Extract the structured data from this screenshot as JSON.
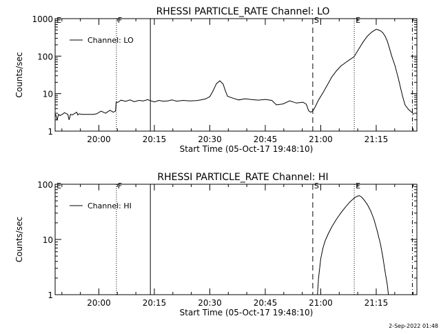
{
  "footer": {
    "timestamp": "2-Sep-2022 01:48"
  },
  "chart_data": [
    {
      "type": "line",
      "title": "RHESSI PARTICLE_RATE Channel: LO",
      "xlabel": "Start Time (05-Oct-17 19:48:10)",
      "ylabel": "Counts/sec",
      "yscale": "log",
      "xlim": [
        19.8028,
        21.4333
      ],
      "ylim": [
        1,
        1000
      ],
      "xticks": [
        20.0,
        20.25,
        20.5,
        20.75,
        21.0,
        21.25
      ],
      "xtick_labels": [
        "20:00",
        "20:15",
        "20:30",
        "20:45",
        "21:00",
        "21:15"
      ],
      "yticks": [
        1,
        10,
        100,
        1000
      ],
      "ytick_labels": [
        "1",
        "10",
        "100",
        "1000"
      ],
      "legend": {
        "label": "Channel: LO",
        "position": "top-left"
      },
      "grid": false,
      "markers": [
        {
          "label": "E",
          "x": 19.803,
          "style": "dotted"
        },
        {
          "label": "F",
          "x": 20.079,
          "style": "dotted"
        },
        {
          "label": "",
          "x": 20.232,
          "style": "solid"
        },
        {
          "label": "S",
          "x": 20.964,
          "style": "dashed"
        },
        {
          "label": "E",
          "x": 21.151,
          "style": "dotted"
        },
        {
          "label": "",
          "x": 21.413,
          "style": "dashdot"
        }
      ],
      "series": [
        {
          "name": "Channel: LO",
          "x": [
            19.805,
            19.812,
            19.818,
            19.825,
            19.835,
            19.845,
            19.86,
            19.866,
            19.872,
            19.88,
            19.9,
            19.905,
            19.91,
            19.925,
            19.94,
            19.96,
            19.975,
            19.99,
            20.01,
            20.03,
            20.05,
            20.065,
            20.075,
            20.078,
            20.085,
            20.1,
            20.12,
            20.14,
            20.16,
            20.18,
            20.2,
            20.22,
            20.232,
            20.25,
            20.27,
            20.29,
            20.31,
            20.33,
            20.35,
            20.38,
            20.41,
            20.44,
            20.46,
            20.48,
            20.5,
            20.515,
            20.53,
            20.545,
            20.56,
            20.57,
            20.58,
            20.6,
            20.63,
            20.66,
            20.69,
            20.72,
            20.75,
            20.78,
            20.8,
            20.83,
            20.86,
            20.89,
            20.92,
            20.935,
            20.945,
            20.955,
            20.965,
            20.975,
            20.99,
            21.01,
            21.03,
            21.05,
            21.07,
            21.09,
            21.11,
            21.13,
            21.15,
            21.17,
            21.19,
            21.21,
            21.23,
            21.25,
            21.26,
            21.27,
            21.28,
            21.29,
            21.3,
            21.31,
            21.32,
            21.335,
            21.35,
            21.36,
            21.37,
            21.38,
            21.395,
            21.41,
            21.42
          ],
          "y": [
            2.8,
            2.0,
            2.8,
            2.6,
            2.8,
            3.1,
            2.8,
            2.0,
            2.8,
            2.7,
            3.2,
            2.7,
            2.9,
            2.8,
            2.8,
            2.8,
            2.8,
            2.9,
            3.4,
            3.0,
            3.6,
            3.2,
            3.4,
            6.0,
            5.8,
            6.7,
            6.2,
            6.8,
            6.1,
            6.6,
            6.4,
            6.9,
            6.5,
            6.0,
            6.6,
            6.3,
            6.4,
            6.8,
            6.3,
            6.6,
            6.4,
            6.5,
            6.8,
            7.2,
            8.3,
            12.0,
            18.5,
            22.0,
            18.0,
            12.0,
            8.5,
            7.7,
            6.8,
            7.3,
            6.9,
            6.7,
            7.0,
            6.6,
            5.0,
            5.3,
            6.4,
            5.6,
            5.9,
            5.2,
            3.5,
            3.2,
            3.5,
            4.4,
            6.8,
            10.5,
            17.0,
            28.0,
            40.0,
            54.0,
            66.0,
            80.0,
            96.0,
            150.0,
            235.0,
            340.0,
            440.0,
            520.0,
            500.0,
            470.0,
            420.0,
            340.0,
            250.0,
            160.0,
            100.0,
            55.0,
            25.0,
            14.0,
            8.0,
            5.0,
            3.8,
            3.2,
            2.8
          ]
        }
      ]
    },
    {
      "type": "line",
      "title": "RHESSI PARTICLE_RATE Channel: HI",
      "xlabel": "Start Time (05-Oct-17 19:48:10)",
      "ylabel": "Counts/sec",
      "yscale": "log",
      "xlim": [
        19.8028,
        21.4333
      ],
      "ylim": [
        1,
        100
      ],
      "xticks": [
        20.0,
        20.25,
        20.5,
        20.75,
        21.0,
        21.25
      ],
      "xtick_labels": [
        "20:00",
        "20:15",
        "20:30",
        "20:45",
        "21:00",
        "21:15"
      ],
      "yticks": [
        1,
        10,
        100
      ],
      "ytick_labels": [
        "1",
        "10",
        "100"
      ],
      "legend": {
        "label": "Channel: HI",
        "position": "top-left"
      },
      "grid": false,
      "markers": [
        {
          "label": "E",
          "x": 19.803,
          "style": "dotted"
        },
        {
          "label": "F",
          "x": 20.079,
          "style": "dotted"
        },
        {
          "label": "",
          "x": 20.232,
          "style": "solid"
        },
        {
          "label": "S",
          "x": 20.964,
          "style": "dashed"
        },
        {
          "label": "E",
          "x": 21.151,
          "style": "dotted"
        },
        {
          "label": "",
          "x": 21.413,
          "style": "dashdot"
        }
      ],
      "series": [
        {
          "name": "Channel: HI",
          "x": [
            20.985,
            20.99,
            21.0,
            21.01,
            21.02,
            21.035,
            21.05,
            21.07,
            21.09,
            21.11,
            21.13,
            21.15,
            21.165,
            21.175,
            21.185,
            21.195,
            21.21,
            21.225,
            21.24,
            21.255,
            21.27,
            21.28,
            21.29,
            21.3,
            21.305
          ],
          "y": [
            1.0,
            2.0,
            4.5,
            7.0,
            9.5,
            13.0,
            17.0,
            23.0,
            30.0,
            38.0,
            47.0,
            56.0,
            61.0,
            62.0,
            58.0,
            52.0,
            43.0,
            33.0,
            23.0,
            14.0,
            8.0,
            4.8,
            2.6,
            1.5,
            1.0
          ]
        }
      ]
    }
  ]
}
